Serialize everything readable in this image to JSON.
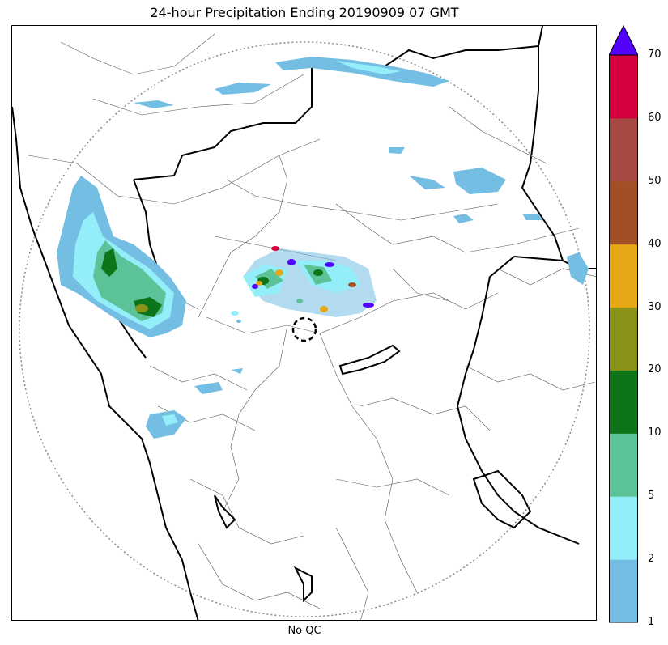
{
  "title": "24-hour Precipitation Ending 20190909 07 GMT",
  "xlabel": "No QC",
  "colorbar": {
    "ticks": [
      "1",
      "2",
      "5",
      "10",
      "20",
      "30",
      "40",
      "50",
      "60",
      "70"
    ],
    "colors": [
      "#74bde3",
      "#93eefa",
      "#5cc398",
      "#0d741a",
      "#8b9219",
      "#e6a816",
      "#a34f25",
      "#a54a43",
      "#d4003d"
    ],
    "extend_max_color": "#5300ff",
    "units_note": ""
  },
  "map": {
    "range_ring_style": "dotted gray",
    "radar_site_marker": "dashed black circle",
    "boundary_colors": {
      "state": "#000000",
      "district": "#555555"
    },
    "precip_regions": [
      {
        "name": "western-ghats-band",
        "max_level": "30-40"
      },
      {
        "name": "central-cluster",
        "max_level": ">70"
      },
      {
        "name": "northern-streak",
        "max_level": "2-5"
      },
      {
        "name": "northeast-patches",
        "max_level": "1-2"
      },
      {
        "name": "southwest-patches",
        "max_level": "2-5"
      }
    ]
  }
}
